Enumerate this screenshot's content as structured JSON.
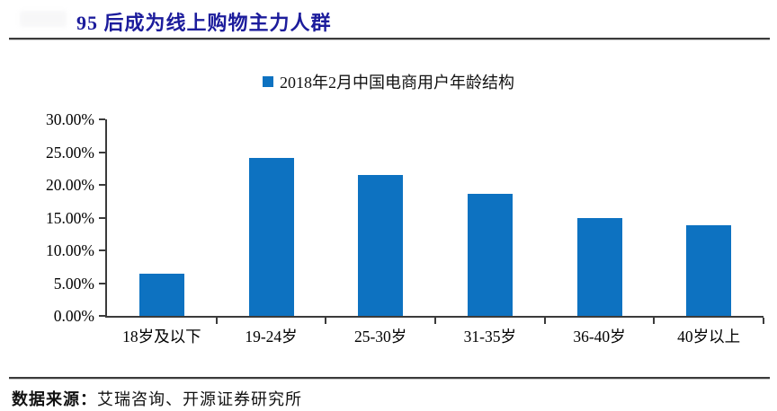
{
  "header": {
    "title": "95 后成为线上购物主力人群"
  },
  "legend": {
    "label": "2018年2月中国电商用户年龄结构"
  },
  "footer": {
    "source_label": "数据来源：",
    "source_text": "艾瑞咨询、开源证券研究所"
  },
  "colors": {
    "bar": "#0D72C1",
    "title_text": "#1C1C9C",
    "axis": "#3B3B3B"
  },
  "chart_data": {
    "type": "bar",
    "title": "2018年2月中国电商用户年龄结构",
    "categories": [
      "18岁及以下",
      "19-24岁",
      "25-30岁",
      "31-35岁",
      "36-40岁",
      "40岁以上"
    ],
    "values": [
      6.4,
      24.1,
      21.5,
      18.6,
      14.9,
      13.9
    ],
    "unit": "%",
    "xlabel": "",
    "ylabel": "",
    "ylim": [
      0,
      30
    ],
    "ytick_step": 5,
    "ytick_labels": [
      "0.00%",
      "5.00%",
      "10.00%",
      "15.00%",
      "20.00%",
      "25.00%",
      "30.00%"
    ],
    "grid": false,
    "legend_position": "top-center"
  }
}
